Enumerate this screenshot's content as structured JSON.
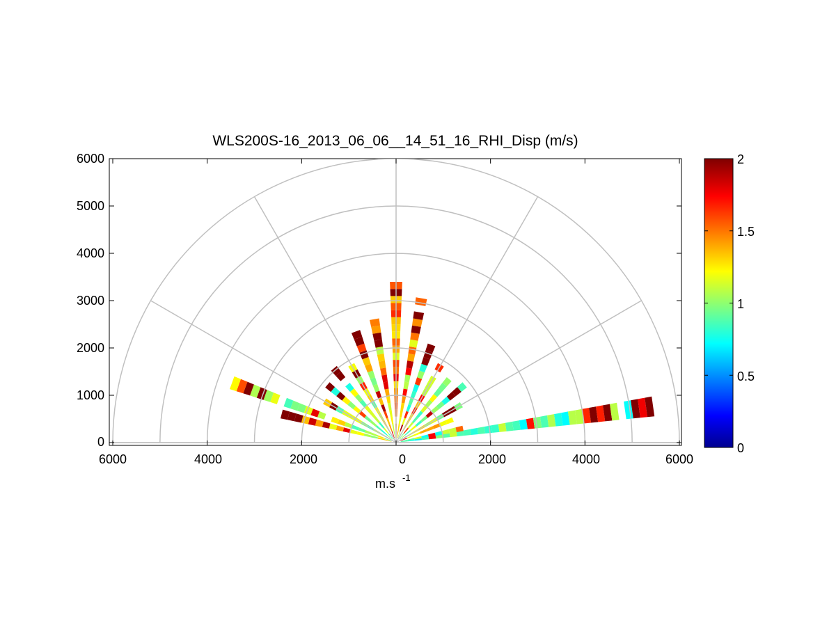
{
  "chart_data": {
    "type": "polar-rhi-sector",
    "title": "WLS200S-16_2013_06_06__14_51_16_RHI_Disp (m/s)",
    "xlabel": "m.s",
    "xlabel_superscript": "-1",
    "ylabel": "",
    "xlim": [
      -6000,
      6000
    ],
    "ylim": [
      0,
      6000
    ],
    "x_ticks": [
      -6000,
      -4000,
      -2000,
      0,
      2000,
      4000,
      6000
    ],
    "x_tick_labels": [
      "6000",
      "4000",
      "2000",
      "0",
      "2000",
      "4000",
      "6000"
    ],
    "y_ticks": [
      0,
      1000,
      2000,
      3000,
      4000,
      5000,
      6000
    ],
    "y_tick_labels": [
      "0",
      "1000",
      "2000",
      "3000",
      "4000",
      "5000",
      "6000"
    ],
    "range_rings": [
      1000,
      2000,
      3000,
      4000,
      5000,
      6000
    ],
    "spokes_deg": [
      0,
      30,
      60,
      90,
      120,
      150,
      180
    ],
    "grid": true,
    "colorbar": {
      "min": 0,
      "max": 2,
      "ticks": [
        0,
        0.5,
        1,
        1.5,
        2
      ],
      "tick_labels": [
        "0",
        "0.5",
        "1",
        "1.5",
        "2"
      ],
      "colormap": "jet",
      "colors": [
        "#00008f",
        "#0000ff",
        "#00ffff",
        "#ffff00",
        "#ff0000",
        "#800000"
      ]
    },
    "rays": [
      {
        "elevation_deg": 8,
        "max_range_m": 5400,
        "mean_value": 0.9
      },
      {
        "elevation_deg": 12,
        "max_range_m": 1400,
        "mean_value": 1.0
      },
      {
        "elevation_deg": 22,
        "max_range_m": 1300,
        "mean_value": 1.2
      },
      {
        "elevation_deg": 30,
        "max_range_m": 1500,
        "mean_value": 1.1
      },
      {
        "elevation_deg": 40,
        "max_range_m": 1800,
        "mean_value": 1.0
      },
      {
        "elevation_deg": 50,
        "max_range_m": 1700,
        "mean_value": 1.0
      },
      {
        "elevation_deg": 60,
        "max_range_m": 1900,
        "mean_value": 1.1
      },
      {
        "elevation_deg": 70,
        "max_range_m": 2200,
        "mean_value": 1.0
      },
      {
        "elevation_deg": 80,
        "max_range_m": 3000,
        "mean_value": 1.3
      },
      {
        "elevation_deg": 90,
        "max_range_m": 3400,
        "mean_value": 1.4
      },
      {
        "elevation_deg": 100,
        "max_range_m": 2600,
        "mean_value": 1.3
      },
      {
        "elevation_deg": 110,
        "max_range_m": 2500,
        "mean_value": 1.2
      },
      {
        "elevation_deg": 120,
        "max_range_m": 1900,
        "mean_value": 1.1
      },
      {
        "elevation_deg": 130,
        "max_range_m": 2000,
        "mean_value": 1.0
      },
      {
        "elevation_deg": 140,
        "max_range_m": 1900,
        "mean_value": 1.0
      },
      {
        "elevation_deg": 150,
        "max_range_m": 1700,
        "mean_value": 1.1
      },
      {
        "elevation_deg": 160,
        "max_range_m": 3700,
        "mean_value": 1.1
      },
      {
        "elevation_deg": 166,
        "max_range_m": 2400,
        "mean_value": 1.2
      }
    ]
  }
}
